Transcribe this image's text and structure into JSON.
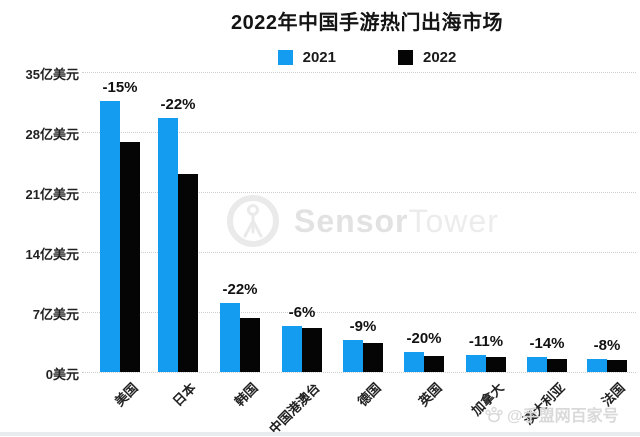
{
  "title": "2022年中国手游热门出海市场",
  "legend": [
    {
      "label": "2021",
      "color": "#139CF0"
    },
    {
      "label": "2022",
      "color": "#050505"
    }
  ],
  "colors": {
    "blue_2021": "#139CF0",
    "black_2022": "#050505",
    "grid": "#cfcfcf"
  },
  "watermark": {
    "icon": "sensortower-logo-icon",
    "sensor": "Sensor",
    "tower": "Tower"
  },
  "source_watermark": {
    "icon": "paw-icon",
    "text": "@手盟网百家号"
  },
  "chart_data": {
    "type": "bar",
    "title": "2022年中国手游热门出海市场",
    "categories": [
      "美国",
      "日本",
      "韩国",
      "中国港澳台",
      "德国",
      "英国",
      "加拿大",
      "澳大利亚",
      "法国"
    ],
    "series": [
      {
        "name": "2021",
        "color": "#139CF0",
        "values": [
          31.6,
          29.6,
          8.1,
          5.4,
          3.7,
          2.3,
          2.0,
          1.75,
          1.5
        ]
      },
      {
        "name": "2022",
        "color": "#050505",
        "values": [
          26.8,
          23.1,
          6.3,
          5.1,
          3.4,
          1.85,
          1.8,
          1.5,
          1.4
        ]
      }
    ],
    "pct_change_labels": [
      "-15%",
      "-22%",
      "-22%",
      "-6%",
      "-9%",
      "-20%",
      "-11%",
      "-14%",
      "-8%"
    ],
    "unit": "亿美元",
    "y_ticks": [
      {
        "value": 35,
        "label": "35亿美元"
      },
      {
        "value": 28,
        "label": "28亿美元"
      },
      {
        "value": 21,
        "label": "21亿美元"
      },
      {
        "value": 14,
        "label": "14亿美元"
      },
      {
        "value": 7,
        "label": "7亿美元"
      },
      {
        "value": 0,
        "label": "0美元"
      }
    ],
    "ylim": [
      0,
      35
    ],
    "grid": "horizontal-dotted",
    "legend_position": "top-center",
    "x_tick_rotation": 45
  }
}
